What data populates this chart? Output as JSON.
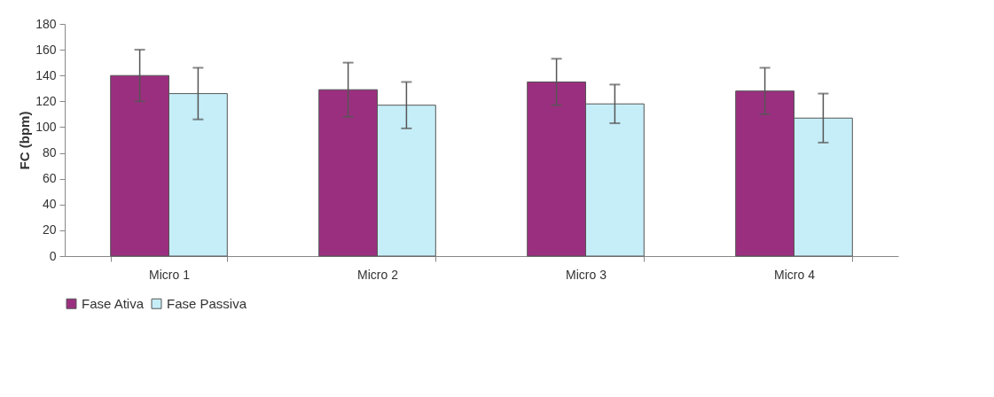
{
  "chart_data": {
    "type": "bar",
    "ylabel": "FC (bpm)",
    "categories": [
      "Micro 1",
      "Micro 2",
      "Micro 3",
      "Micro 4"
    ],
    "series": [
      {
        "name": "Fase Ativa",
        "color": "#9b2f7f",
        "values": [
          140,
          129,
          135,
          128
        ],
        "errors": [
          20,
          21,
          18,
          18
        ]
      },
      {
        "name": "Fase Passiva",
        "color": "#c6eef8",
        "values": [
          126,
          117,
          118,
          107
        ],
        "errors": [
          20,
          18,
          15,
          19
        ]
      }
    ],
    "ylim": [
      0,
      180
    ],
    "yticks": [
      0,
      20,
      40,
      60,
      80,
      100,
      120,
      140,
      160,
      180
    ],
    "grid": false,
    "legend": "bottom"
  }
}
